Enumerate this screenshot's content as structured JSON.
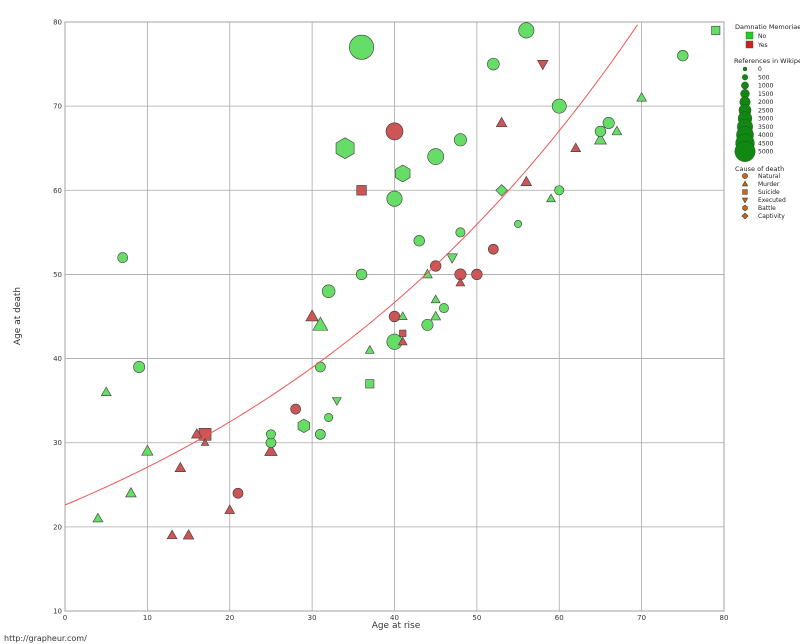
{
  "chart_data": {
    "type": "scatter",
    "xlabel": "Age at rise",
    "ylabel": "Age at death",
    "xlim": [
      0,
      80
    ],
    "ylim": [
      10,
      80
    ],
    "xticks": [
      0,
      10,
      20,
      30,
      40,
      50,
      60,
      70,
      80
    ],
    "yticks": [
      10,
      20,
      30,
      40,
      50,
      60,
      70,
      80
    ],
    "grid": true,
    "trend": {
      "type": "exponential",
      "points": [
        [
          0,
          22.6
        ],
        [
          10,
          28.2
        ],
        [
          20,
          34.6
        ],
        [
          30,
          41.8
        ],
        [
          40,
          49.9
        ],
        [
          50,
          59.0
        ],
        [
          60,
          69.3
        ],
        [
          70,
          80.4
        ]
      ],
      "color": "#ee5555"
    },
    "legend": {
      "placement": "right",
      "damnatio": {
        "title": "Damnatio Memoriae",
        "items": [
          {
            "label": "No",
            "color": "#22cc22"
          },
          {
            "label": "Yes",
            "color": "#cc2222"
          }
        ]
      },
      "refs": {
        "title": "References in Wikipedia",
        "values": [
          "0",
          "500",
          "1000",
          "1500",
          "2000",
          "2500",
          "3000",
          "3500",
          "4000",
          "4500",
          "5000"
        ]
      },
      "cause": {
        "title": "Cause of death",
        "items": [
          {
            "label": "Natural",
            "shape": "circle"
          },
          {
            "label": "Murder",
            "shape": "triangle-up"
          },
          {
            "label": "Suicide",
            "shape": "square"
          },
          {
            "label": "Executed",
            "shape": "triangle-down"
          },
          {
            "label": "Battle",
            "shape": "hexagon"
          },
          {
            "label": "Captivity",
            "shape": "diamond"
          }
        ],
        "color": "#cc6611"
      }
    },
    "points": [
      {
        "x": 36,
        "y": 77,
        "refs": 5000,
        "dm": "No",
        "cause": "Natural"
      },
      {
        "x": 56,
        "y": 79,
        "refs": 1500,
        "dm": "No",
        "cause": "Natural"
      },
      {
        "x": 52,
        "y": 75,
        "refs": 700,
        "dm": "No",
        "cause": "Natural"
      },
      {
        "x": 75,
        "y": 76,
        "refs": 500,
        "dm": "No",
        "cause": "Natural"
      },
      {
        "x": 79,
        "y": 79,
        "refs": 300,
        "dm": "No",
        "cause": "Suicide"
      },
      {
        "x": 58,
        "y": 75,
        "refs": 400,
        "dm": "Yes",
        "cause": "Executed"
      },
      {
        "x": 60,
        "y": 70,
        "refs": 1200,
        "dm": "No",
        "cause": "Natural"
      },
      {
        "x": 70,
        "y": 71,
        "refs": 300,
        "dm": "No",
        "cause": "Murder"
      },
      {
        "x": 66,
        "y": 68,
        "refs": 600,
        "dm": "No",
        "cause": "Natural"
      },
      {
        "x": 65,
        "y": 67,
        "refs": 500,
        "dm": "No",
        "cause": "Natural"
      },
      {
        "x": 67,
        "y": 67,
        "refs": 300,
        "dm": "No",
        "cause": "Murder"
      },
      {
        "x": 65,
        "y": 66,
        "refs": 600,
        "dm": "No",
        "cause": "Murder"
      },
      {
        "x": 62,
        "y": 65,
        "refs": 300,
        "dm": "Yes",
        "cause": "Murder"
      },
      {
        "x": 53,
        "y": 68,
        "refs": 400,
        "dm": "Yes",
        "cause": "Murder"
      },
      {
        "x": 40,
        "y": 67,
        "refs": 2000,
        "dm": "Yes",
        "cause": "Natural"
      },
      {
        "x": 48,
        "y": 66,
        "refs": 800,
        "dm": "No",
        "cause": "Natural"
      },
      {
        "x": 34,
        "y": 65,
        "refs": 3000,
        "dm": "No",
        "cause": "Battle"
      },
      {
        "x": 45,
        "y": 64,
        "refs": 1700,
        "dm": "No",
        "cause": "Natural"
      },
      {
        "x": 41,
        "y": 62,
        "refs": 1700,
        "dm": "No",
        "cause": "Battle"
      },
      {
        "x": 56,
        "y": 61,
        "refs": 400,
        "dm": "Yes",
        "cause": "Murder"
      },
      {
        "x": 53,
        "y": 60,
        "refs": 400,
        "dm": "No",
        "cause": "Captivity"
      },
      {
        "x": 36,
        "y": 60,
        "refs": 500,
        "dm": "Yes",
        "cause": "Suicide"
      },
      {
        "x": 60,
        "y": 60,
        "refs": 300,
        "dm": "No",
        "cause": "Natural"
      },
      {
        "x": 40,
        "y": 59,
        "refs": 1500,
        "dm": "No",
        "cause": "Natural"
      },
      {
        "x": 59,
        "y": 59,
        "refs": 200,
        "dm": "No",
        "cause": "Murder"
      },
      {
        "x": 55,
        "y": 56,
        "refs": 100,
        "dm": "No",
        "cause": "Natural"
      },
      {
        "x": 48,
        "y": 55,
        "refs": 300,
        "dm": "No",
        "cause": "Natural"
      },
      {
        "x": 43,
        "y": 54,
        "refs": 500,
        "dm": "No",
        "cause": "Natural"
      },
      {
        "x": 52,
        "y": 53,
        "refs": 400,
        "dm": "Yes",
        "cause": "Natural"
      },
      {
        "x": 7,
        "y": 52,
        "refs": 400,
        "dm": "No",
        "cause": "Natural"
      },
      {
        "x": 47,
        "y": 52,
        "refs": 400,
        "dm": "No",
        "cause": "Executed"
      },
      {
        "x": 45,
        "y": 51,
        "refs": 500,
        "dm": "Yes",
        "cause": "Natural"
      },
      {
        "x": 36,
        "y": 50,
        "refs": 500,
        "dm": "No",
        "cause": "Natural"
      },
      {
        "x": 44,
        "y": 50,
        "refs": 300,
        "dm": "No",
        "cause": "Murder"
      },
      {
        "x": 48,
        "y": 50,
        "refs": 600,
        "dm": "Yes",
        "cause": "Natural"
      },
      {
        "x": 50,
        "y": 50,
        "refs": 500,
        "dm": "Yes",
        "cause": "Natural"
      },
      {
        "x": 48,
        "y": 49,
        "refs": 200,
        "dm": "Yes",
        "cause": "Murder"
      },
      {
        "x": 32,
        "y": 48,
        "refs": 900,
        "dm": "No",
        "cause": "Natural"
      },
      {
        "x": 45,
        "y": 47,
        "refs": 200,
        "dm": "No",
        "cause": "Murder"
      },
      {
        "x": 46,
        "y": 46,
        "refs": 300,
        "dm": "No",
        "cause": "Natural"
      },
      {
        "x": 30,
        "y": 45,
        "refs": 700,
        "dm": "Yes",
        "cause": "Murder"
      },
      {
        "x": 40,
        "y": 45,
        "refs": 500,
        "dm": "Yes",
        "cause": "Natural"
      },
      {
        "x": 41,
        "y": 45,
        "refs": 200,
        "dm": "No",
        "cause": "Murder"
      },
      {
        "x": 45,
        "y": 45,
        "refs": 300,
        "dm": "No",
        "cause": "Murder"
      },
      {
        "x": 31,
        "y": 44,
        "refs": 1200,
        "dm": "No",
        "cause": "Murder"
      },
      {
        "x": 44,
        "y": 44,
        "refs": 600,
        "dm": "No",
        "cause": "Natural"
      },
      {
        "x": 41,
        "y": 43,
        "refs": 100,
        "dm": "Yes",
        "cause": "Suicide"
      },
      {
        "x": 40,
        "y": 42,
        "refs": 1500,
        "dm": "No",
        "cause": "Natural"
      },
      {
        "x": 41,
        "y": 42,
        "refs": 200,
        "dm": "Yes",
        "cause": "Murder"
      },
      {
        "x": 37,
        "y": 41,
        "refs": 200,
        "dm": "No",
        "cause": "Murder"
      },
      {
        "x": 9,
        "y": 39,
        "refs": 600,
        "dm": "No",
        "cause": "Natural"
      },
      {
        "x": 31,
        "y": 39,
        "refs": 400,
        "dm": "No",
        "cause": "Natural"
      },
      {
        "x": 37,
        "y": 37,
        "refs": 300,
        "dm": "No",
        "cause": "Suicide"
      },
      {
        "x": 5,
        "y": 36,
        "refs": 300,
        "dm": "No",
        "cause": "Murder"
      },
      {
        "x": 33,
        "y": 35,
        "refs": 200,
        "dm": "No",
        "cause": "Executed"
      },
      {
        "x": 28,
        "y": 34,
        "refs": 400,
        "dm": "Yes",
        "cause": "Natural"
      },
      {
        "x": 32,
        "y": 33,
        "refs": 200,
        "dm": "No",
        "cause": "Natural"
      },
      {
        "x": 29,
        "y": 32,
        "refs": 900,
        "dm": "No",
        "cause": "Battle"
      },
      {
        "x": 16,
        "y": 31,
        "refs": 400,
        "dm": "Yes",
        "cause": "Murder"
      },
      {
        "x": 17,
        "y": 31,
        "refs": 1000,
        "dm": "Yes",
        "cause": "Suicide"
      },
      {
        "x": 25,
        "y": 31,
        "refs": 300,
        "dm": "No",
        "cause": "Natural"
      },
      {
        "x": 31,
        "y": 31,
        "refs": 400,
        "dm": "No",
        "cause": "Natural"
      },
      {
        "x": 17,
        "y": 30,
        "refs": 100,
        "dm": "Yes",
        "cause": "Murder"
      },
      {
        "x": 25,
        "y": 30,
        "refs": 400,
        "dm": "No",
        "cause": "Natural"
      },
      {
        "x": 10,
        "y": 29,
        "refs": 500,
        "dm": "No",
        "cause": "Murder"
      },
      {
        "x": 25,
        "y": 29,
        "refs": 700,
        "dm": "Yes",
        "cause": "Murder"
      },
      {
        "x": 14,
        "y": 27,
        "refs": 400,
        "dm": "Yes",
        "cause": "Murder"
      },
      {
        "x": 21,
        "y": 24,
        "refs": 400,
        "dm": "Yes",
        "cause": "Natural"
      },
      {
        "x": 8,
        "y": 24,
        "refs": 400,
        "dm": "No",
        "cause": "Murder"
      },
      {
        "x": 20,
        "y": 22,
        "refs": 300,
        "dm": "Yes",
        "cause": "Murder"
      },
      {
        "x": 4,
        "y": 21,
        "refs": 300,
        "dm": "No",
        "cause": "Murder"
      },
      {
        "x": 13,
        "y": 19,
        "refs": 300,
        "dm": "Yes",
        "cause": "Murder"
      },
      {
        "x": 15,
        "y": 19,
        "refs": 400,
        "dm": "Yes",
        "cause": "Murder"
      }
    ]
  },
  "footer": {
    "watermark": "http://grapheur.com/"
  }
}
